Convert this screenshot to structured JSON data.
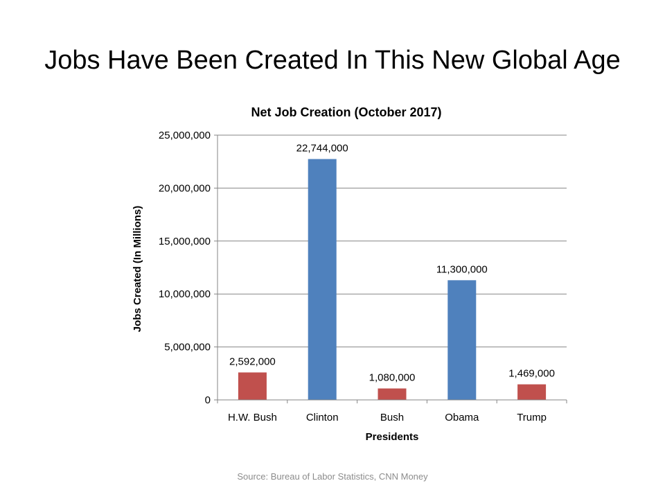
{
  "slide": {
    "title": "Jobs Have Been Created In This New Global Age",
    "source": "Source: Bureau of Labor Statistics, CNN Money"
  },
  "chart_data": {
    "type": "bar",
    "title": "Net Job Creation (October 2017)",
    "xlabel": "Presidents",
    "ylabel": "Jobs Created (In Millions)",
    "categories": [
      "H.W. Bush",
      "Clinton",
      "Bush",
      "Obama",
      "Trump"
    ],
    "values": [
      2592000,
      22744000,
      1080000,
      11300000,
      1469000
    ],
    "data_labels": [
      "2,592,000",
      "22,744,000",
      "1,080,000",
      "11,300,000",
      "1,469,000"
    ],
    "bar_colors": [
      "#c0504d",
      "#4f81bd",
      "#c0504d",
      "#4f81bd",
      "#c0504d"
    ],
    "ylim": [
      0,
      25000000
    ],
    "yticks": [
      0,
      5000000,
      10000000,
      15000000,
      20000000,
      25000000
    ],
    "ytick_labels": [
      "0",
      "5,000,000",
      "10,000,000",
      "15,000,000",
      "20,000,000",
      "25,000,000"
    ],
    "grid": true,
    "legend": "none"
  }
}
